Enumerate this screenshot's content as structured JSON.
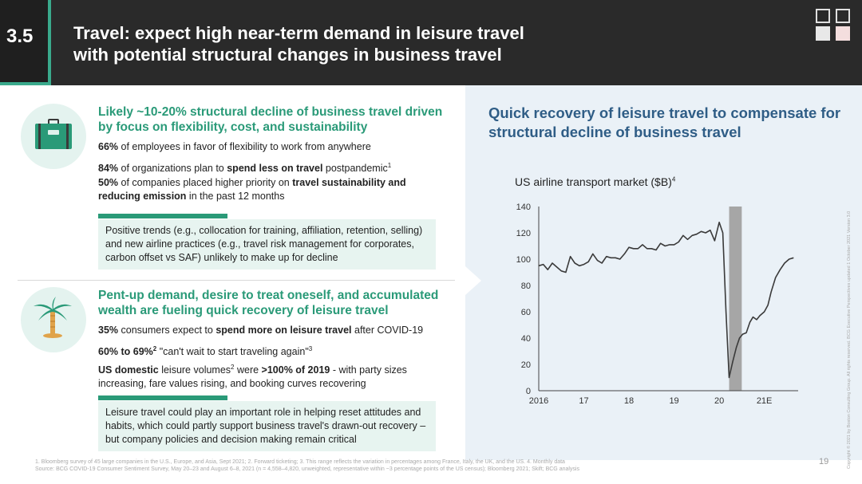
{
  "header": {
    "section_number": "3.5",
    "title_line1": "Travel: expect high near-term demand in leisure travel",
    "title_line2": "with potential structural changes in business travel"
  },
  "business": {
    "icon": "suitcase-icon",
    "heading": "Likely ~10-20% structural decline of business travel driven by focus on flexibility, cost, and sustainability",
    "b1_bold": "66%",
    "b1_text": " of employees in favor of flexibility to work from anywhere",
    "b2_bold": "84%",
    "b2_text1": " of organizations plan to ",
    "b2_bold2": "spend less on travel",
    "b2_text2": " postpandemic",
    "b2_sup": "1",
    "b3_bold": "50%",
    "b3_text1": " of companies placed higher priority on ",
    "b3_bold2": "travel sustainability and reducing emission",
    "b3_text2": " in the past 12 months",
    "note": "Positive trends (e.g., collocation for training, affiliation, retention, selling) and new airline practices (e.g., travel risk management for corporates, carbon offset vs SAF) unlikely to make up for decline"
  },
  "leisure": {
    "icon": "palm-tree-icon",
    "heading": "Pent-up demand, desire to treat oneself, and accumulated wealth are fueling quick recovery of leisure travel",
    "b1_bold": "35%",
    "b1_text1": " consumers expect to ",
    "b1_bold2": "spend more on leisure travel",
    "b1_text2": " after COVID-19",
    "b2_bold": "60% to 69%",
    "b2_sup": "2",
    "b2_text": " \"can't wait to start traveling again\"",
    "b2_sup2": "3",
    "b3_bold": "US domestic",
    "b3_text1": " leisure volumes",
    "b3_sup": "2",
    "b3_text2": " were ",
    "b3_bold2": ">100% of 2019",
    "b3_text3": " - with party sizes increasing, fare values rising, and booking curves recovering",
    "note": "Leisure travel could play an important role in helping reset attitudes and habits, which could partly support business travel's drawn-out recovery – but company policies and decision making remain critical"
  },
  "right": {
    "title": "Quick recovery of leisure travel to compensate for structural decline of business travel"
  },
  "chart_data": {
    "type": "line",
    "title": "US airline transport market ($B)",
    "title_sup": "4",
    "xlabel": "",
    "ylabel": "",
    "ylim": [
      0,
      140
    ],
    "yticks": [
      0,
      20,
      40,
      60,
      80,
      100,
      120,
      140
    ],
    "xtick_labels": [
      "2016",
      "17",
      "18",
      "19",
      "20",
      "21E"
    ],
    "xtick_positions": [
      2016,
      2017,
      2018,
      2019,
      2020,
      2021
    ],
    "xlim": [
      2016,
      2021.75
    ],
    "shaded_band": [
      2020.22,
      2020.5
    ],
    "colors": {
      "line": "#3a3a3a",
      "band": "#a6a6a6"
    },
    "series": [
      {
        "x": [
          2016.0,
          2016.1,
          2016.2,
          2016.3,
          2016.4,
          2016.5,
          2016.6,
          2016.7,
          2016.8,
          2016.9,
          2017.0,
          2017.1,
          2017.2,
          2017.3,
          2017.4,
          2017.5,
          2017.6,
          2017.7,
          2017.8,
          2017.9,
          2018.0,
          2018.1,
          2018.2,
          2018.3,
          2018.4,
          2018.5,
          2018.6,
          2018.7,
          2018.8,
          2018.9,
          2019.0,
          2019.1,
          2019.2,
          2019.3,
          2019.4,
          2019.5,
          2019.6,
          2019.7,
          2019.8,
          2019.9,
          2020.0,
          2020.08,
          2020.15,
          2020.22,
          2020.3,
          2020.38,
          2020.45,
          2020.52,
          2020.6,
          2020.68,
          2020.75,
          2020.83,
          2020.9,
          2021.0,
          2021.08,
          2021.15,
          2021.25,
          2021.35,
          2021.45,
          2021.55,
          2021.65
        ],
        "values": [
          95,
          96,
          92,
          97,
          94,
          91,
          90,
          102,
          97,
          95,
          96,
          98,
          104,
          99,
          97,
          102,
          101,
          101,
          100,
          104,
          109,
          108,
          108,
          111,
          108,
          108,
          107,
          112,
          110,
          111,
          111,
          113,
          118,
          115,
          118,
          119,
          121,
          120,
          122,
          114,
          128,
          120,
          60,
          10,
          22,
          33,
          40,
          43,
          44,
          52,
          56,
          54,
          57,
          60,
          65,
          75,
          86,
          92,
          97,
          100,
          101
        ]
      }
    ]
  },
  "footnote_line1": "1. Bloomberg survey of 45 large companies in the U.S., Europe, and Asia, Sept 2021; 2. Forward ticketing; 3. This range reflects the variation in percentages among France, Italy, the UK, and the US. 4. Monthly data",
  "footnote_line2": "Source: BCG COVID-19 Consumer Sentiment Survey, May 20–23 and August 6–8, 2021 (n = 4,558–4,820, unweighted, representative within ~3 percentage points of the US census); Bloomberg 2021; Skift; BCG analysis",
  "page_number": "19",
  "copyright": "Copyright © 2021 by Boston Consulting Group. All rights reserved. BCG Executive Perspectives updated 1 October 2021 Version 3.0"
}
